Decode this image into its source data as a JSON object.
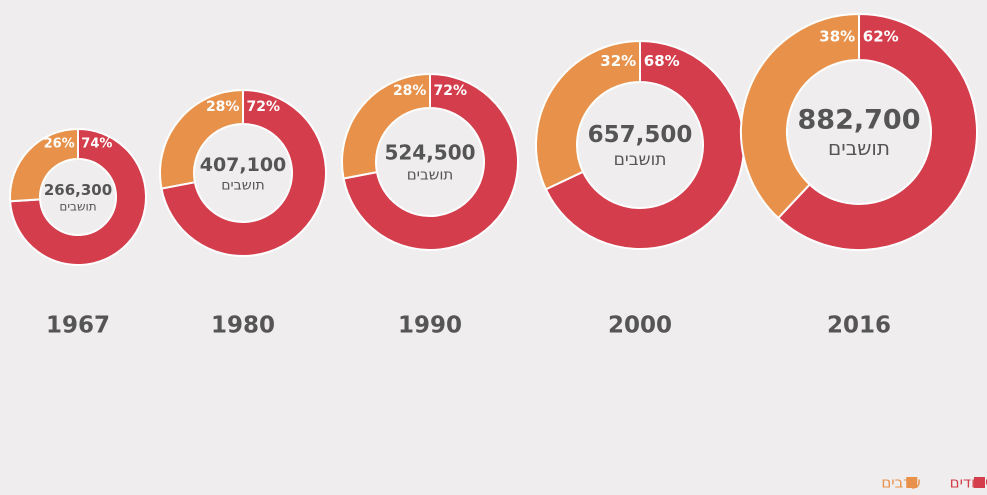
{
  "chart_data": [
    {
      "type": "pie",
      "title": "1967",
      "center_label": "266,300",
      "center_sublabel": "תושבים",
      "categories": [
        "יהודים",
        "ערבים"
      ],
      "values": [
        74,
        26
      ],
      "value_labels": [
        "74%",
        "26%"
      ],
      "colors": [
        "#d43d4b",
        "#e8914b"
      ]
    },
    {
      "type": "pie",
      "title": "1980",
      "center_label": "407,100",
      "center_sublabel": "תושבים",
      "categories": [
        "יהודים",
        "ערבים"
      ],
      "values": [
        72,
        28
      ],
      "value_labels": [
        "72%",
        "28%"
      ],
      "colors": [
        "#d43d4b",
        "#e8914b"
      ]
    },
    {
      "type": "pie",
      "title": "1990",
      "center_label": "524,500",
      "center_sublabel": "תושבים",
      "categories": [
        "יהודים",
        "ערבים"
      ],
      "values": [
        72,
        28
      ],
      "value_labels": [
        "72%",
        "28%"
      ],
      "colors": [
        "#d43d4b",
        "#e8914b"
      ]
    },
    {
      "type": "pie",
      "title": "2000",
      "center_label": "657,500",
      "center_sublabel": "תושבים",
      "categories": [
        "יהודים",
        "ערבים"
      ],
      "values": [
        68,
        32
      ],
      "value_labels": [
        "68%",
        "32%"
      ],
      "colors": [
        "#d43d4b",
        "#e8914b"
      ]
    },
    {
      "type": "pie",
      "title": "2016",
      "center_label": "882,700",
      "center_sublabel": "תושבים",
      "categories": [
        "יהודים",
        "ערבים"
      ],
      "values": [
        62,
        38
      ],
      "value_labels": [
        "62%",
        "38%"
      ],
      "colors": [
        "#d43d4b",
        "#e8914b"
      ]
    }
  ]
}
